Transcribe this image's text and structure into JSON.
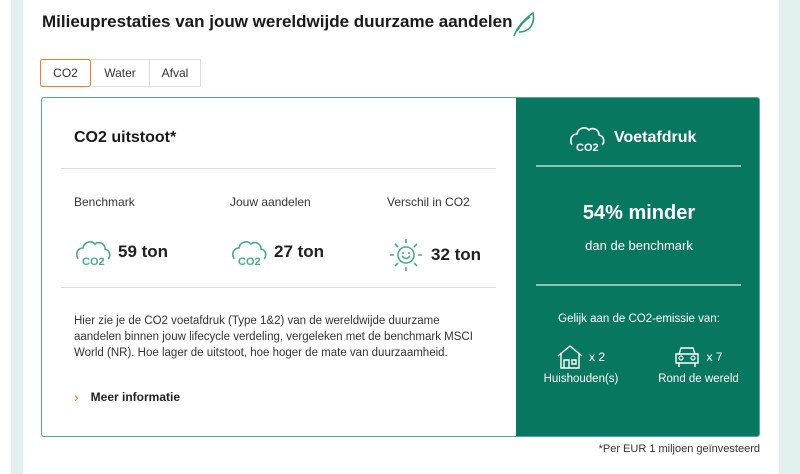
{
  "title": "Milieuprestaties van jouw wereldwijde duurzame aandelen",
  "tabs": [
    {
      "label": "CO2",
      "active": true
    },
    {
      "label": "Water"
    },
    {
      "label": "Afval"
    }
  ],
  "card": {
    "heading": "CO2 uitstoot*",
    "metrics": [
      {
        "label": "Benchmark",
        "value": "59 ton",
        "icon": "co2-cloud-icon"
      },
      {
        "label": "Jouw aandelen",
        "value": "27 ton",
        "icon": "co2-cloud-icon"
      },
      {
        "label": "Verschil in CO2",
        "value": "32 ton",
        "icon": "smiling-sun-icon"
      }
    ],
    "description": "Hier zie je de CO2 voetafdruk (Type 1&2) van de wereldwijde duurzame aandelen binnen jouw lifecycle verdeling, vergeleken met de benchmark MSCI World (NR). Hoe lager de uitstoot, hoe hoger de mate van duurzaamheid.",
    "more_link": "Meer informatie"
  },
  "footprint": {
    "title": "Voetafdruk",
    "headline": "54% minder",
    "subline": "dan de benchmark",
    "equal_to": "Gelijk aan de CO2-emissie van:",
    "items": [
      {
        "count": "x 2",
        "label": "Huishouden(s)",
        "icon": "house-icon"
      },
      {
        "count": "x 7",
        "label": "Rond de wereld",
        "icon": "car-icon"
      }
    ]
  },
  "footnote": "*Per EUR 1 miljoen geïnvesteerd",
  "colors": {
    "accent": "#f07c2e",
    "green": "#087760",
    "icon": "#4ea88f"
  }
}
